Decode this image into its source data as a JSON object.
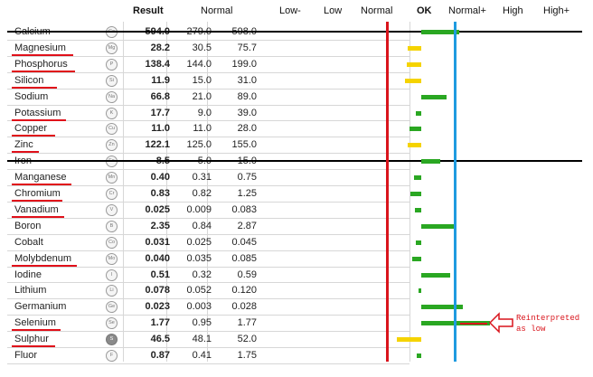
{
  "headers": {
    "result": "Result",
    "normal": "Normal",
    "scale": [
      "Low-",
      "Low",
      "Normal",
      "OK",
      "Normal+",
      "High",
      "High+"
    ]
  },
  "rows": [
    {
      "name": "Calcium",
      "symbol": "Ca",
      "result": "594.0",
      "low": "279.0",
      "high": "598.0",
      "level": 0.6,
      "struck": true
    },
    {
      "name": "Magnesium",
      "symbol": "Mg",
      "result": "28.2",
      "low": "30.5",
      "high": "75.7",
      "level": -0.19,
      "underlined": true
    },
    {
      "name": "Phosphorus",
      "symbol": "P",
      "result": "138.4",
      "low": "144.0",
      "high": "199.0",
      "level": -0.2,
      "underlined": true
    },
    {
      "name": "Silicon",
      "symbol": "Si",
      "result": "11.9",
      "low": "15.0",
      "high": "31.0",
      "level": -0.22,
      "underlined": true
    },
    {
      "name": "Sodium",
      "symbol": "Na",
      "result": "66.8",
      "low": "21.0",
      "high": "89.0",
      "level": 0.4
    },
    {
      "name": "Potassium",
      "symbol": "K",
      "result": "17.7",
      "low": "9.0",
      "high": "39.0",
      "level": -0.09,
      "underlined": true
    },
    {
      "name": "Copper",
      "symbol": "Cu",
      "result": "11.0",
      "low": "11.0",
      "high": "28.0",
      "level": -0.18,
      "underlined": true
    },
    {
      "name": "Zinc",
      "symbol": "Zn",
      "result": "122.1",
      "low": "125.0",
      "high": "155.0",
      "level": -0.19,
      "underlined": true
    },
    {
      "name": "Iron",
      "symbol": "Fe",
      "result": "8.5",
      "low": "5.0",
      "high": "15.0",
      "level": 0.3,
      "struck": true
    },
    {
      "name": "Manganese",
      "symbol": "Mn",
      "result": "0.40",
      "low": "0.31",
      "high": "0.75",
      "level": -0.11,
      "underlined": true
    },
    {
      "name": "Chromium",
      "symbol": "Cr",
      "result": "0.83",
      "low": "0.82",
      "high": "1.25",
      "level": -0.17,
      "underlined": true
    },
    {
      "name": "Vanadium",
      "symbol": "V",
      "result": "0.025",
      "low": "0.009",
      "high": "0.083",
      "level": -0.1,
      "underlined": true
    },
    {
      "name": "Boron",
      "symbol": "B",
      "result": "2.35",
      "low": "0.84",
      "high": "2.87",
      "level": 0.55
    },
    {
      "name": "Cobalt",
      "symbol": "Co",
      "result": "0.031",
      "low": "0.025",
      "high": "0.045",
      "level": -0.08
    },
    {
      "name": "Molybdenum",
      "symbol": "Mo",
      "result": "0.040",
      "low": "0.035",
      "high": "0.085",
      "level": -0.14,
      "underlined": true
    },
    {
      "name": "Iodine",
      "symbol": "I",
      "result": "0.51",
      "low": "0.32",
      "high": "0.59",
      "level": 0.45
    },
    {
      "name": "Lithium",
      "symbol": "Li",
      "result": "0.078",
      "low": "0.052",
      "high": "0.120",
      "level": -0.05
    },
    {
      "name": "Germanium",
      "symbol": "Ge",
      "result": "0.023",
      "low": "0.003",
      "high": "0.028",
      "level": 0.65
    },
    {
      "name": "Selenium",
      "symbol": "Se",
      "result": "1.77",
      "low": "0.95",
      "high": "1.77",
      "level": 1.08,
      "underlined": true
    },
    {
      "name": "Sulphur",
      "symbol": "S",
      "result": "46.5",
      "low": "48.1",
      "high": "52.0",
      "level": -0.33,
      "underlined": true
    },
    {
      "name": "Fluor",
      "symbol": "F",
      "result": "0.87",
      "low": "0.41",
      "high": "1.75",
      "level": -0.07
    }
  ],
  "annotation": {
    "line1": "Reinterpreted",
    "line2": "as low",
    "color": "#d9141c"
  },
  "colors": {
    "low_bar": "#f5d300",
    "ok_bar": "#2aa722",
    "normal_line": "#d9141c",
    "normal_plus_line": "#1f9be0",
    "underline": "#e0101a"
  }
}
